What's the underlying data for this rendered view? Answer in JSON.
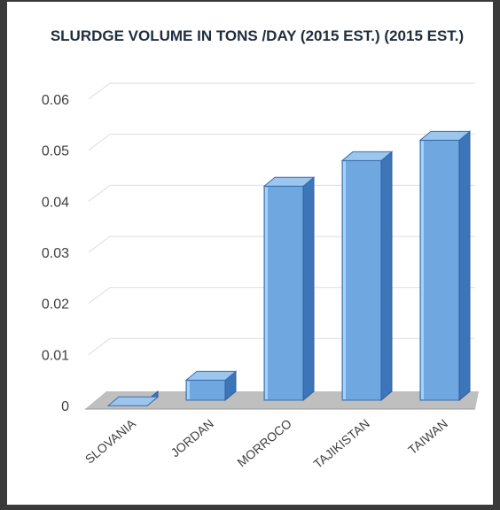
{
  "chart_data": {
    "type": "bar",
    "title": "SLURDGE VOLUME IN TONS /DAY (2015 EST.) (2015 EST.)",
    "categories": [
      "SLOVANIA",
      "JORDAN",
      "MORROCO",
      "TAJIKISTAN",
      "TAIWAN"
    ],
    "values": [
      0.001,
      0.006,
      0.044,
      0.049,
      0.053
    ],
    "ylim": [
      0,
      0.06
    ],
    "yticks": [
      "0",
      "0.01",
      "0.02",
      "0.03",
      "0.04",
      "0.05",
      "0.06"
    ],
    "grid": true,
    "style": "3d-column",
    "colors": {
      "bar_front": "#6fa8e0",
      "bar_side": "#3c75b8",
      "bar_top": "#9cc6ee",
      "floor": "#bfbfbf",
      "grid": "#e3e3e3"
    }
  }
}
